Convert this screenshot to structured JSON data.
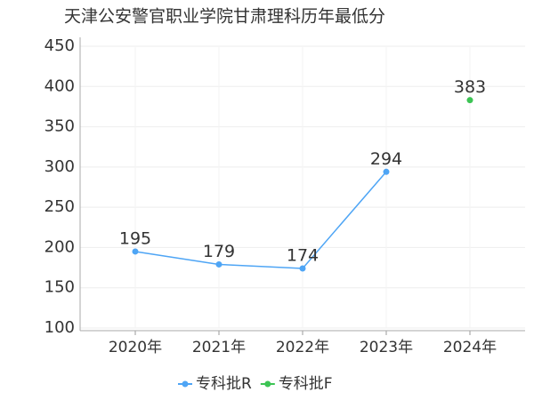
{
  "chart_data": {
    "type": "line",
    "title": "天津公安警官职业学院甘肃理科历年最低分",
    "categories": [
      "2020年",
      "2021年",
      "2022年",
      "2023年",
      "2024年"
    ],
    "series": [
      {
        "name": "专科批R",
        "color": "#4ea5f5",
        "values": [
          195,
          179,
          174,
          294,
          null
        ]
      },
      {
        "name": "专科批F",
        "color": "#3cc454",
        "values": [
          null,
          null,
          null,
          null,
          383
        ]
      }
    ],
    "ylim": [
      100,
      450
    ],
    "yticks": [
      100,
      150,
      200,
      250,
      300,
      350,
      400,
      450
    ],
    "grid": true,
    "legend": "bottom"
  }
}
